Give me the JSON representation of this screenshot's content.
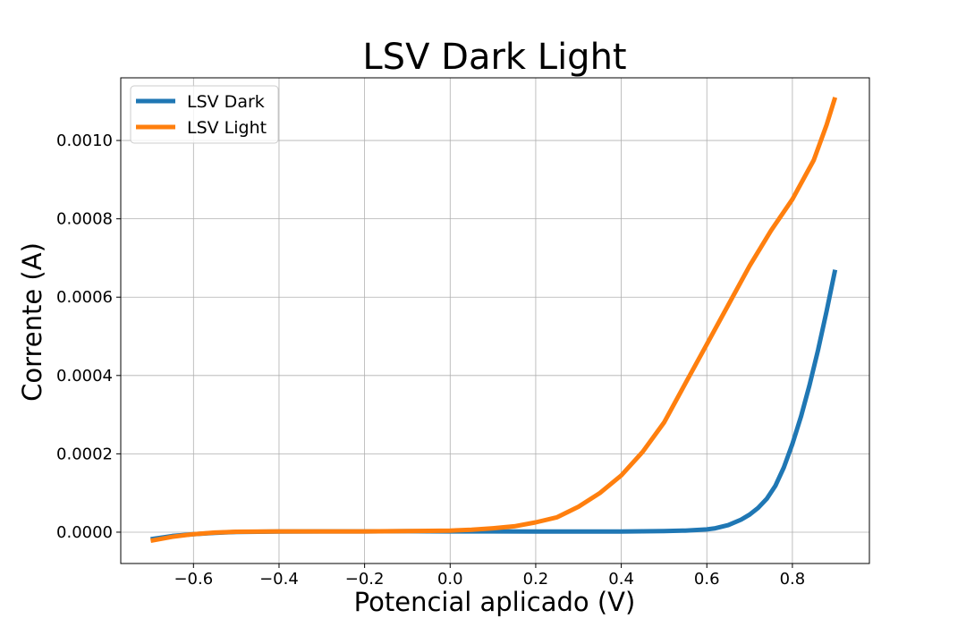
{
  "chart_data": {
    "type": "line",
    "title": "LSV Dark Light",
    "xlabel": "Potencial aplicado (V)",
    "ylabel": "Corrente (A)",
    "xlim": [
      -0.77,
      0.98
    ],
    "ylim": [
      -8e-05,
      0.00116
    ],
    "x_ticks": [
      -0.6,
      -0.4,
      -0.2,
      0.0,
      0.2,
      0.4,
      0.6,
      0.8
    ],
    "x_tick_labels": [
      "−0.6",
      "−0.4",
      "−0.2",
      "0.0",
      "0.2",
      "0.4",
      "0.6",
      "0.8"
    ],
    "y_ticks": [
      0.0,
      0.0002,
      0.0004,
      0.0006,
      0.0008,
      0.001
    ],
    "y_tick_labels": [
      "0.0000",
      "0.0002",
      "0.0004",
      "0.0006",
      "0.0008",
      "0.0010"
    ],
    "grid": true,
    "legend_position": "top-left",
    "series": [
      {
        "name": "LSV Dark",
        "color": "#1f77b4",
        "x": [
          -0.7,
          -0.65,
          -0.6,
          -0.55,
          -0.5,
          -0.4,
          -0.3,
          -0.2,
          -0.1,
          0.0,
          0.1,
          0.2,
          0.3,
          0.4,
          0.5,
          0.55,
          0.6,
          0.62,
          0.65,
          0.68,
          0.7,
          0.72,
          0.74,
          0.76,
          0.78,
          0.8,
          0.82,
          0.84,
          0.86,
          0.88,
          0.9
        ],
        "y": [
          -1.8e-05,
          -1e-05,
          -5e-06,
          -2e-06,
          5e-07,
          1.5e-06,
          2e-06,
          2e-06,
          2.5e-06,
          2e-06,
          2e-06,
          1.5e-06,
          1.5e-06,
          1.5e-06,
          3e-06,
          4e-06,
          7e-06,
          1e-05,
          1.8e-05,
          3.2e-05,
          4.5e-05,
          6.2e-05,
          8.5e-05,
          0.000118,
          0.000165,
          0.000225,
          0.000295,
          0.000375,
          0.000465,
          0.000565,
          0.00067
        ]
      },
      {
        "name": "LSV Light",
        "color": "#ff7f0e",
        "x": [
          -0.7,
          -0.65,
          -0.6,
          -0.55,
          -0.5,
          -0.4,
          -0.3,
          -0.2,
          -0.1,
          0.0,
          0.05,
          0.1,
          0.15,
          0.2,
          0.25,
          0.3,
          0.35,
          0.4,
          0.45,
          0.5,
          0.55,
          0.6,
          0.65,
          0.7,
          0.75,
          0.8,
          0.85,
          0.88,
          0.9
        ],
        "y": [
          -2.2e-05,
          -1.2e-05,
          -5e-06,
          -1e-06,
          1e-06,
          2e-06,
          2e-06,
          2e-06,
          3e-06,
          4e-06,
          6e-06,
          1e-05,
          1.5e-05,
          2.5e-05,
          3.8e-05,
          6.5e-05,
          0.0001,
          0.000145,
          0.000205,
          0.00028,
          0.00038,
          0.00048,
          0.00058,
          0.00068,
          0.00077,
          0.00085,
          0.00095,
          0.00104,
          0.00111
        ]
      }
    ]
  }
}
